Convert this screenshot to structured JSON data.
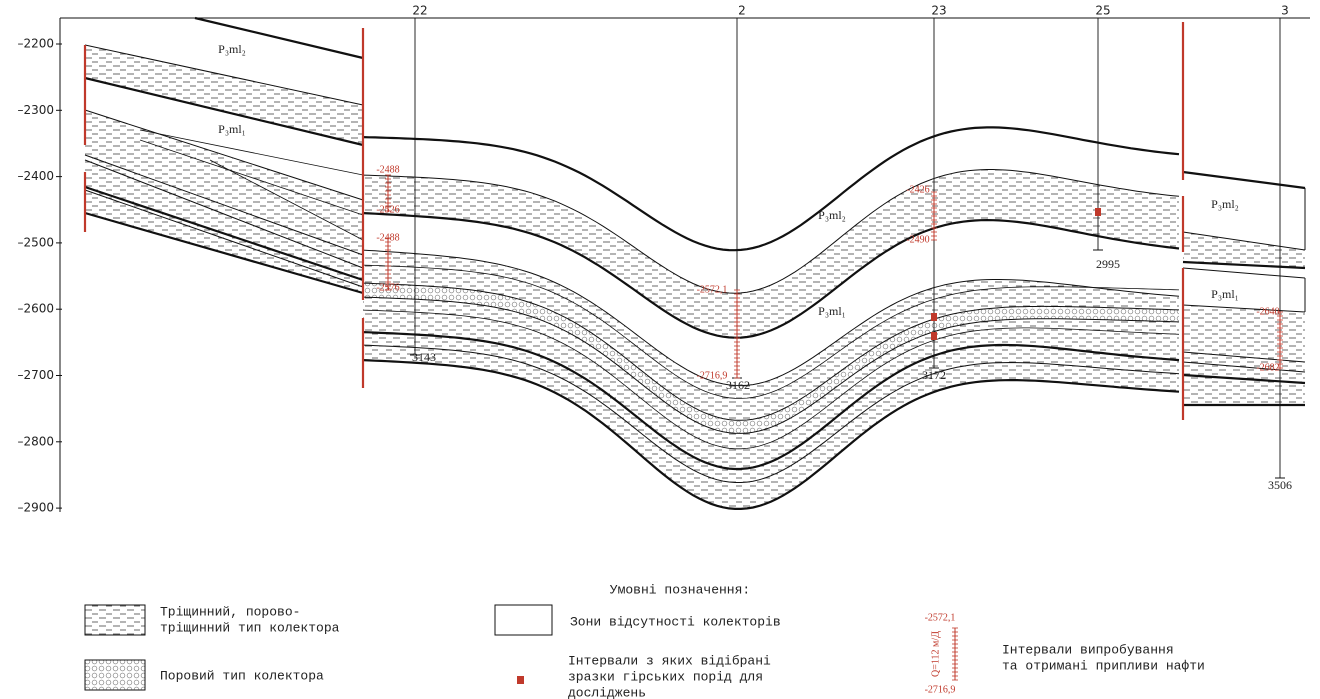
{
  "axis": {
    "ticks": [
      "–2200",
      "–2300",
      "–2400",
      "–2500",
      "–2600",
      "–2700",
      "–2800",
      "–2900"
    ]
  },
  "wells": [
    {
      "name": "22",
      "depth": "3143"
    },
    {
      "name": "2",
      "depth": "3162"
    },
    {
      "name": "23",
      "depth": "3172"
    },
    {
      "name": "25",
      "depth": "2995"
    },
    {
      "name": "3",
      "depth": "3506"
    }
  ],
  "formations": [
    "P₃ml₂",
    "P₃ml₁",
    "P₃ml₂",
    "P₃ml₁",
    "P₃ml₂",
    "P₃ml₁"
  ],
  "intervals": [
    "-2488",
    "-2526",
    "-2488",
    "-2576",
    "-2572,1",
    "-2716,9",
    "-2426",
    "-2490",
    "-2640",
    "-2682"
  ],
  "legend": {
    "title": "Умовні позначення:",
    "fractured": [
      "Тріщинний, порово-",
      "тріщинний тип колектора"
    ],
    "porous": [
      "Поровий тип колектора"
    ],
    "absent": [
      "Зони відсутності колекторів"
    ],
    "samples": [
      "Інтервали з яких відібрані",
      "зразки гірських порід для",
      "досліджень"
    ],
    "tests": [
      "Інтервали випробування",
      "та отримані припливи нафти"
    ],
    "test_top": "-2572,1",
    "test_bottom": "-2716,9",
    "test_note": "Q=112 м/Д"
  }
}
